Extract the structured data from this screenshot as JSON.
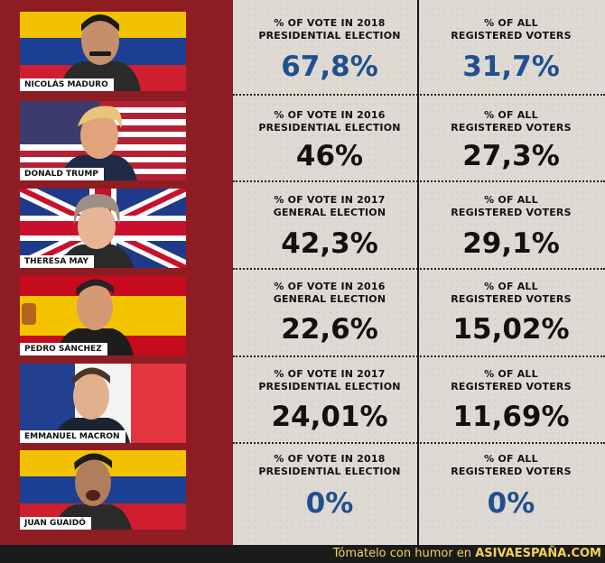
{
  "footer": {
    "text": "Tómatelo con humor en",
    "brand": "ASIVAESPAÑA.COM"
  },
  "rows": [
    {
      "name": "NICOLÁS MADURO",
      "label1a": "% OF VOTE IN 2018",
      "label1b": "PRESIDENTIAL ELECTION",
      "value1": "67,8%",
      "label2a": "% OF ALL",
      "label2b": "REGISTERED VOTERS",
      "value2": "31,7%"
    },
    {
      "name": "DONALD TRUMP",
      "label1a": "% OF VOTE IN 2016",
      "label1b": "PRESIDENTIAL ELECTION",
      "value1": "46%",
      "label2a": "% OF ALL",
      "label2b": "REGISTERED VOTERS",
      "value2": "27,3%"
    },
    {
      "name": "THERESA MAY",
      "label1a": "% OF VOTE IN 2017",
      "label1b": "GENERAL ELECTION",
      "value1": "42,3%",
      "label2a": "% OF ALL",
      "label2b": "REGISTERED VOTERS",
      "value2": "29,1%"
    },
    {
      "name": "PEDRO SÁNCHEZ",
      "label1a": "% OF VOTE IN 2016",
      "label1b": "GENERAL ELECTION",
      "value1": "22,6%",
      "label2a": "% OF ALL",
      "label2b": "REGISTERED VOTERS",
      "value2": "15,02%"
    },
    {
      "name": "EMMANUEL MACRON",
      "label1a": "% OF VOTE IN 2017",
      "label1b": "PRESIDENTIAL ELECTION",
      "value1": "24,01%",
      "label2a": "% OF ALL",
      "label2b": "REGISTERED VOTERS",
      "value2": "11,69%"
    },
    {
      "name": "JUAN GUAIDÓ",
      "label1a": "% OF VOTE IN 2018",
      "label1b": "PRESIDENTIAL ELECTION",
      "value1": "0%",
      "label2a": "% OF ALL",
      "label2b": "REGISTERED VOTERS",
      "value2": "0%"
    }
  ],
  "colors": {
    "panel_red": "#8d1d22",
    "value_blue": "#214f8f",
    "footer_text": "#f4d15b"
  }
}
